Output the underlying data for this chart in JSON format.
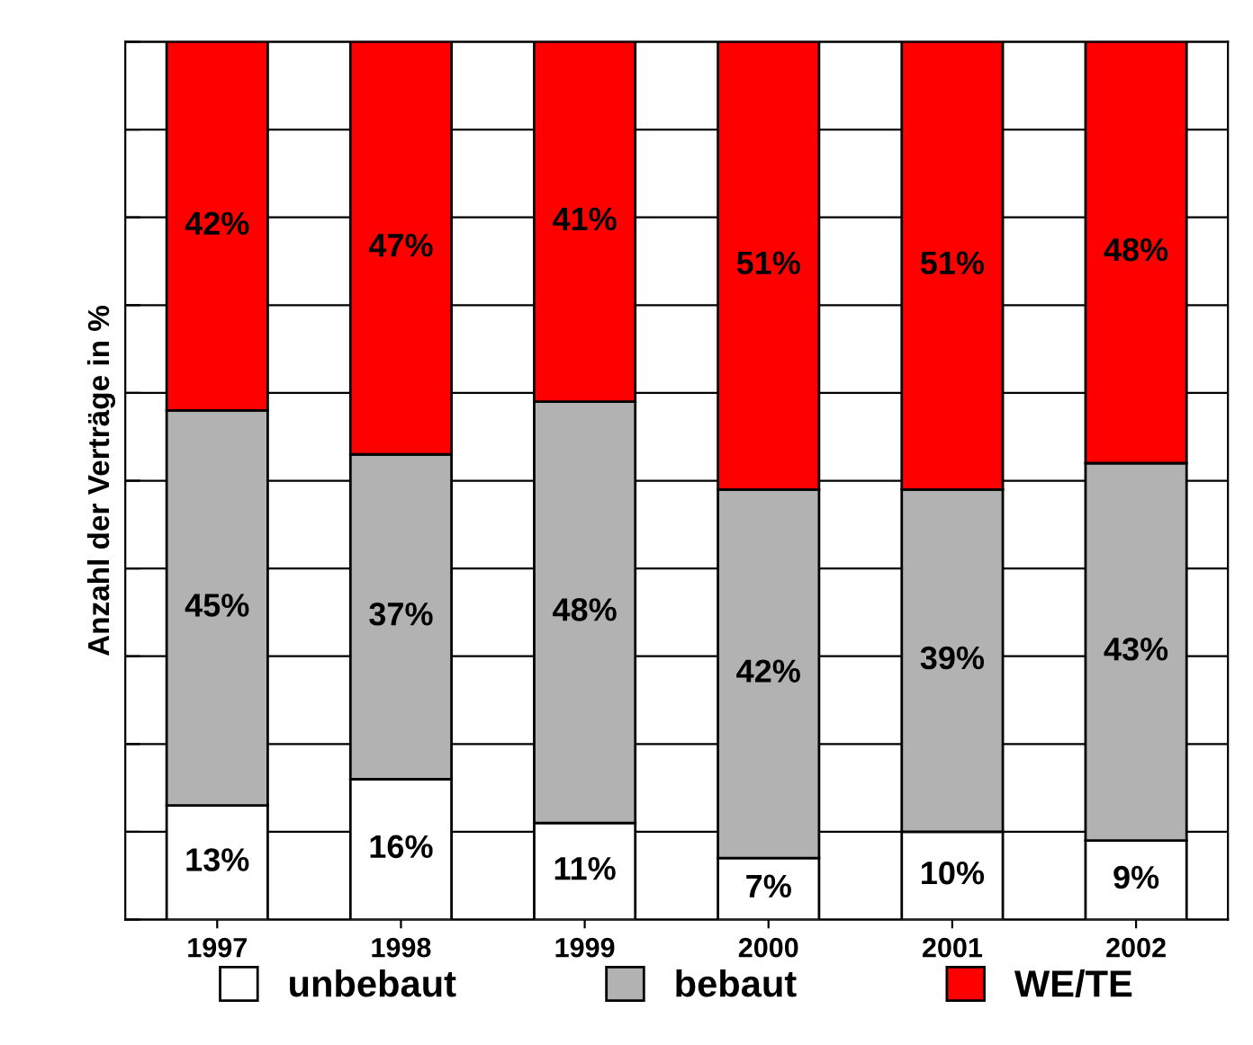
{
  "chart_data": {
    "type": "bar",
    "stacked": true,
    "ylabel": "Anzahl der Verträge in %",
    "categories": [
      "1997",
      "1998",
      "1999",
      "2000",
      "2001",
      "2002"
    ],
    "series": [
      {
        "name": "unbebaut",
        "color": "#ffffff",
        "values": [
          13,
          16,
          11,
          7,
          10,
          9
        ],
        "value_labels": [
          "13%",
          "16%",
          "11%",
          "7%",
          "10%",
          "9%"
        ]
      },
      {
        "name": "bebaut",
        "color": "#b2b2b2",
        "values": [
          45,
          37,
          48,
          42,
          39,
          43
        ],
        "value_labels": [
          "45%",
          "37%",
          "48%",
          "42%",
          "39%",
          "43%"
        ]
      },
      {
        "name": "WE/TE",
        "color": "#ff0000",
        "values": [
          42,
          47,
          41,
          51,
          51,
          48
        ],
        "value_labels": [
          "42%",
          "47%",
          "41%",
          "51%",
          "51%",
          "48%"
        ]
      }
    ],
    "ylim": [
      0,
      100
    ],
    "yticks": [
      {
        "value": 0,
        "label": null
      },
      {
        "value": 10,
        "label": null
      },
      {
        "value": 20,
        "label": null
      },
      {
        "value": 30,
        "label": null
      },
      {
        "value": 40,
        "label": null
      },
      {
        "value": 50,
        "label": null
      },
      {
        "value": 60,
        "label": null
      },
      {
        "value": 70,
        "label": null
      },
      {
        "value": 80,
        "label": null
      },
      {
        "value": 90,
        "label": null
      },
      {
        "value": 100,
        "label": null
      }
    ],
    "tick_labels": "x",
    "grid": "y",
    "legend": "bottom"
  }
}
